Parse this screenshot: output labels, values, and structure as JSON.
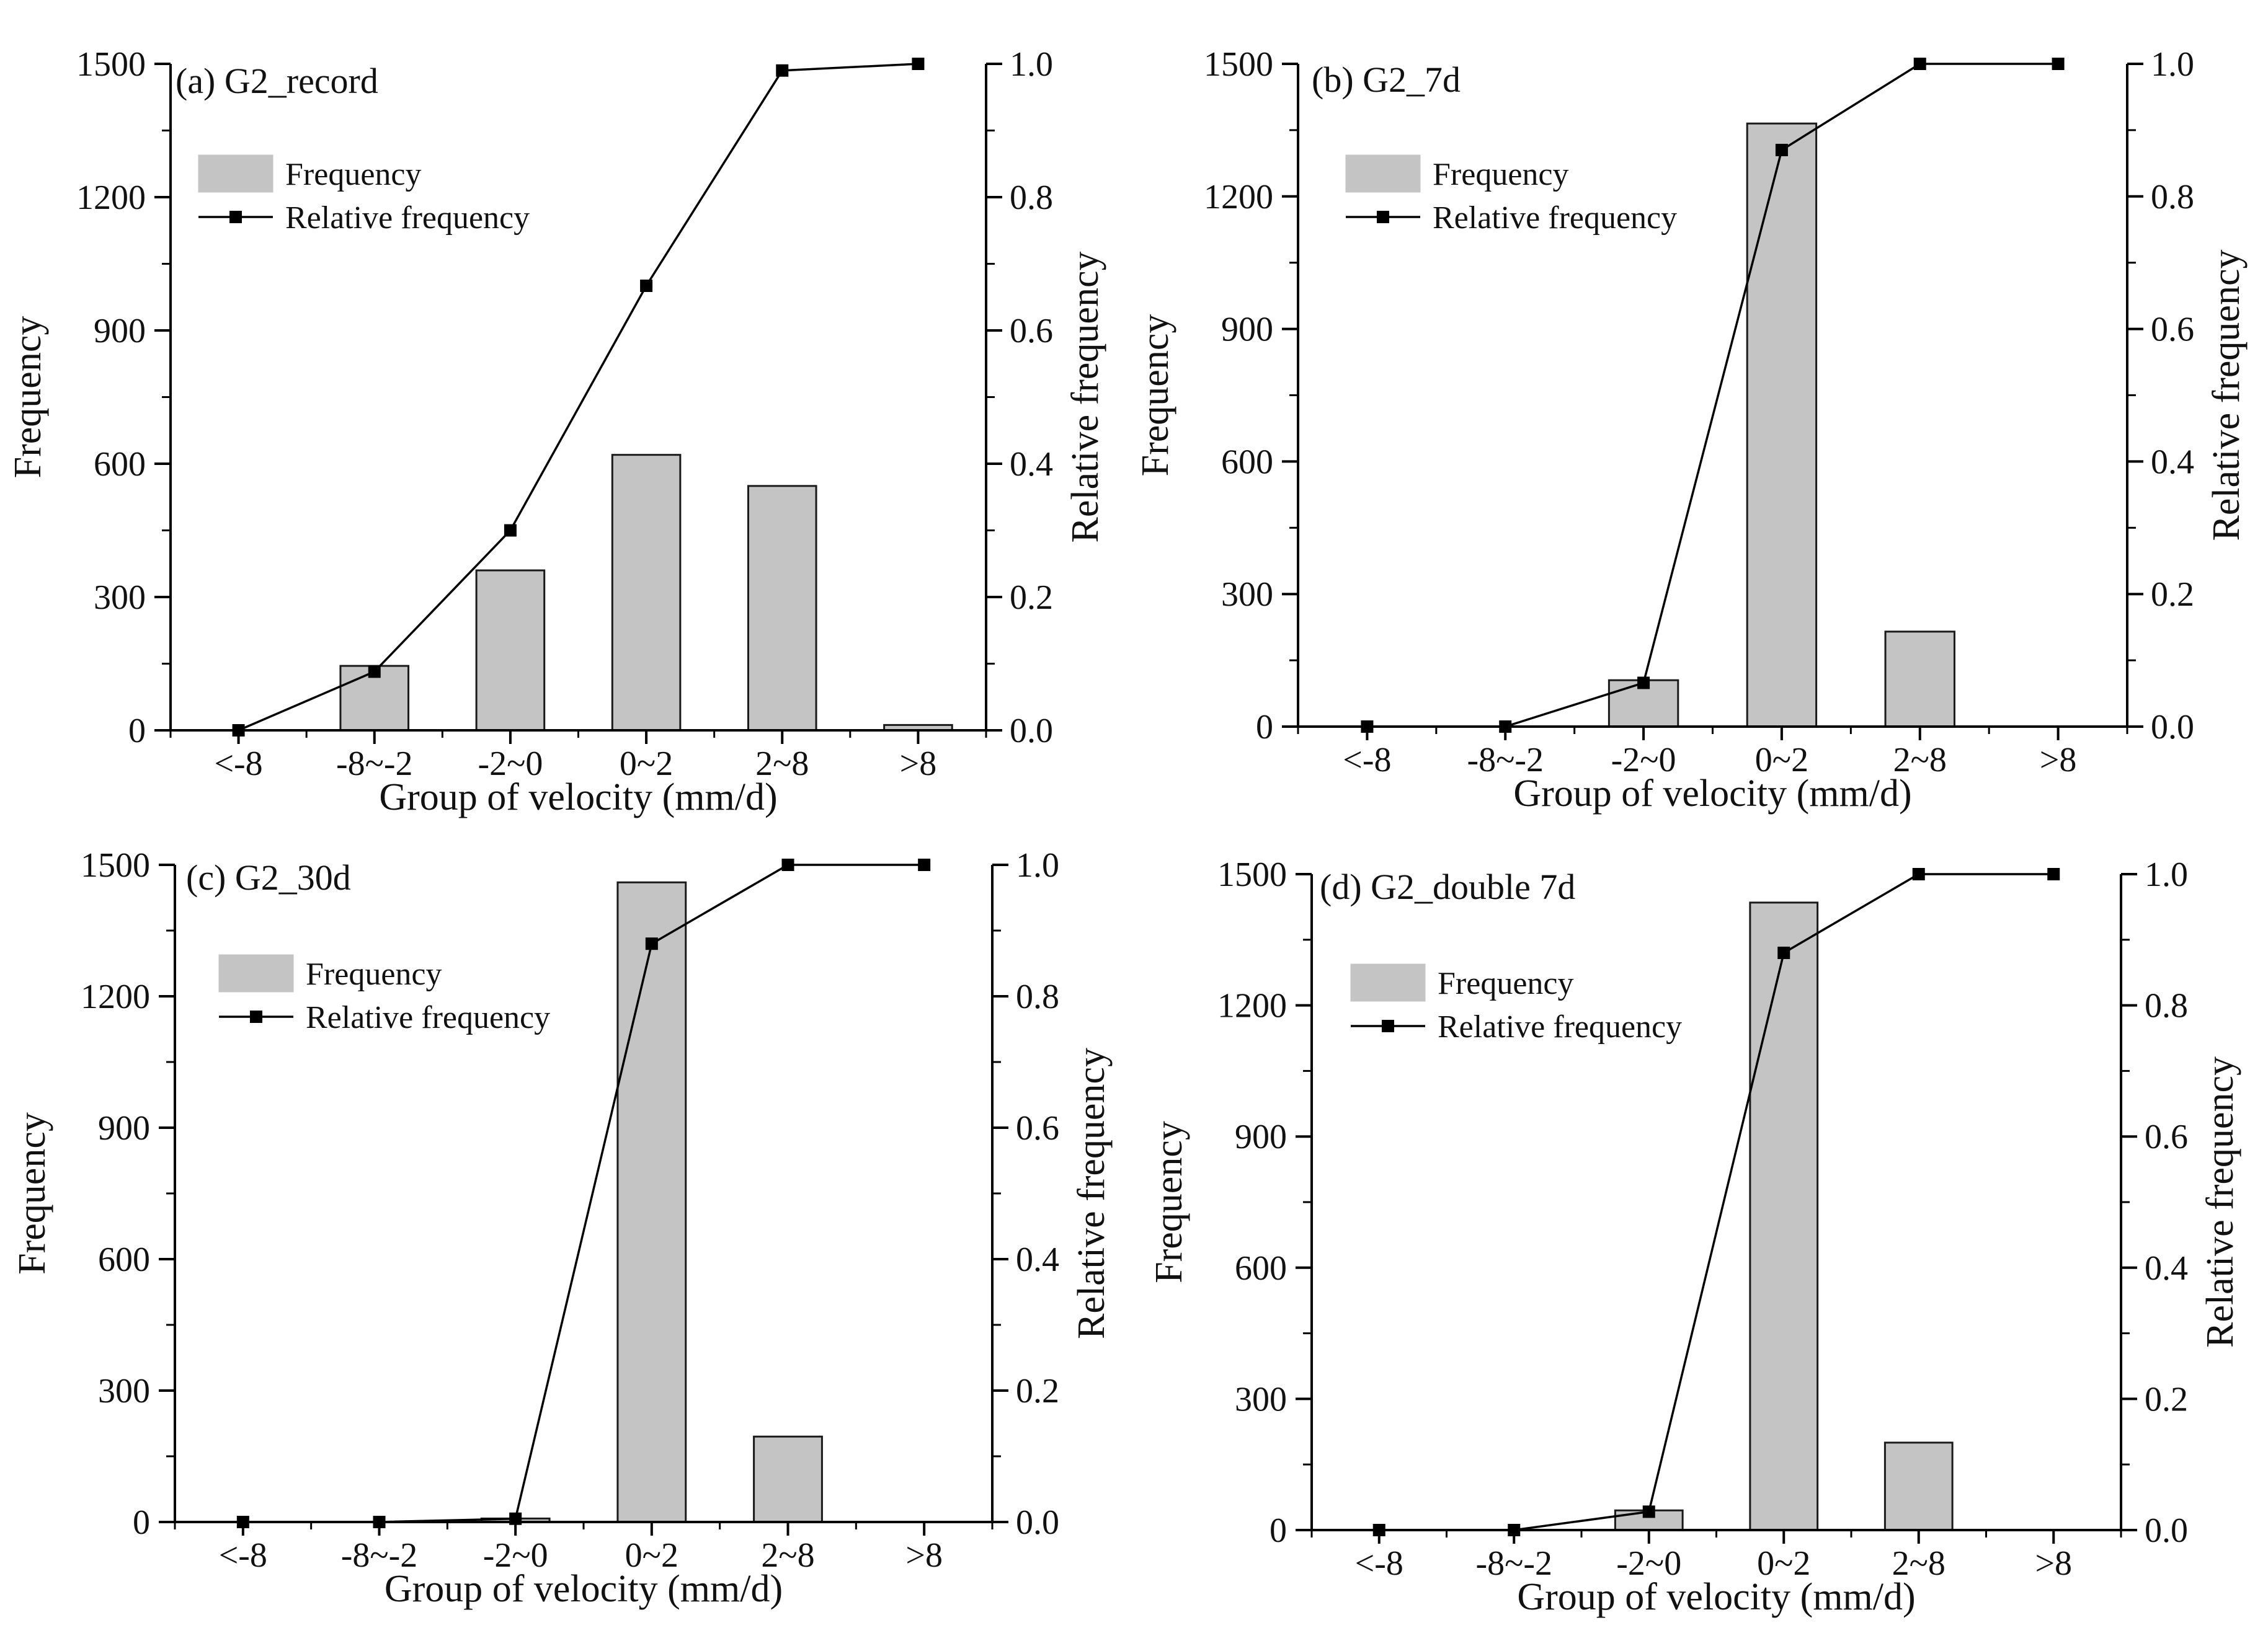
{
  "colors": {
    "bar_fill": "#c4c4c4",
    "bar_stroke": "#1a1a1a",
    "line": "#000000",
    "axis": "#000000",
    "text": "#111111"
  },
  "legend": {
    "frequency": "Frequency",
    "relative": "Relative frequency"
  },
  "chart_data": [
    {
      "type": "bar",
      "title": "(a) G2_record",
      "categories": [
        "<-8",
        "-8~-2",
        "-2~0",
        "0~2",
        "2~8",
        ">8"
      ],
      "xlabel": "Group of velocity (mm/d)",
      "ylabel": "Frequency",
      "y2label": "Relative frequency",
      "ylim": [
        0,
        1500
      ],
      "y2lim": [
        0,
        1.0
      ],
      "yticks": [
        "0",
        "300",
        "600",
        "900",
        "1200",
        "1500"
      ],
      "y2ticks": [
        "0.0",
        "0.2",
        "0.4",
        "0.6",
        "0.8",
        "1.0"
      ],
      "series": [
        {
          "name": "Frequency",
          "kind": "bar",
          "values": [
            0,
            145,
            360,
            620,
            550,
            12
          ]
        },
        {
          "name": "Relative frequency",
          "kind": "line",
          "values": [
            0.0,
            0.088,
            0.3,
            0.667,
            0.99,
            1.0
          ]
        }
      ]
    },
    {
      "type": "bar",
      "title": "(b) G2_7d",
      "categories": [
        "<-8",
        "-8~-2",
        "-2~0",
        "0~2",
        "2~8",
        ">8"
      ],
      "xlabel": "Group of velocity (mm/d)",
      "ylabel": "Frequency",
      "y2label": "Relative frequency",
      "ylim": [
        0,
        1500
      ],
      "y2lim": [
        0,
        1.0
      ],
      "yticks": [
        "0",
        "300",
        "600",
        "900",
        "1200",
        "1500"
      ],
      "y2ticks": [
        "0.0",
        "0.2",
        "0.4",
        "0.6",
        "0.8",
        "1.0"
      ],
      "series": [
        {
          "name": "Frequency",
          "kind": "bar",
          "values": [
            0,
            0,
            105,
            1365,
            215,
            0
          ]
        },
        {
          "name": "Relative frequency",
          "kind": "line",
          "values": [
            0.0,
            0.0,
            0.066,
            0.87,
            1.0,
            1.0
          ]
        }
      ]
    },
    {
      "type": "bar",
      "title": "(c) G2_30d",
      "categories": [
        "<-8",
        "-8~-2",
        "-2~0",
        "0~2",
        "2~8",
        ">8"
      ],
      "xlabel": "Group of velocity (mm/d)",
      "ylabel": "Frequency",
      "y2label": "Relative frequency",
      "ylim": [
        0,
        1500
      ],
      "y2lim": [
        0,
        1.0
      ],
      "yticks": [
        "0",
        "300",
        "600",
        "900",
        "1200",
        "1500"
      ],
      "y2ticks": [
        "0.0",
        "0.2",
        "0.4",
        "0.6",
        "0.8",
        "1.0"
      ],
      "series": [
        {
          "name": "Frequency",
          "kind": "bar",
          "values": [
            0,
            0,
            8,
            1460,
            195,
            0
          ]
        },
        {
          "name": "Relative frequency",
          "kind": "line",
          "values": [
            0.0,
            0.0,
            0.005,
            0.88,
            1.0,
            1.0
          ]
        }
      ]
    },
    {
      "type": "bar",
      "title": "(d) G2_double 7d",
      "categories": [
        "<-8",
        "-8~-2",
        "-2~0",
        "0~2",
        "2~8",
        ">8"
      ],
      "xlabel": "Group of velocity (mm/d)",
      "ylabel": "Frequency",
      "y2label": "Relative frequency",
      "ylim": [
        0,
        1500
      ],
      "y2lim": [
        0,
        1.0
      ],
      "yticks": [
        "0",
        "300",
        "600",
        "900",
        "1200",
        "1500"
      ],
      "y2ticks": [
        "0.0",
        "0.2",
        "0.4",
        "0.6",
        "0.8",
        "1.0"
      ],
      "series": [
        {
          "name": "Frequency",
          "kind": "bar",
          "values": [
            0,
            0,
            45,
            1435,
            200,
            0
          ]
        },
        {
          "name": "Relative frequency",
          "kind": "line",
          "values": [
            0.0,
            0.0,
            0.028,
            0.88,
            1.0,
            1.0
          ]
        }
      ]
    }
  ]
}
